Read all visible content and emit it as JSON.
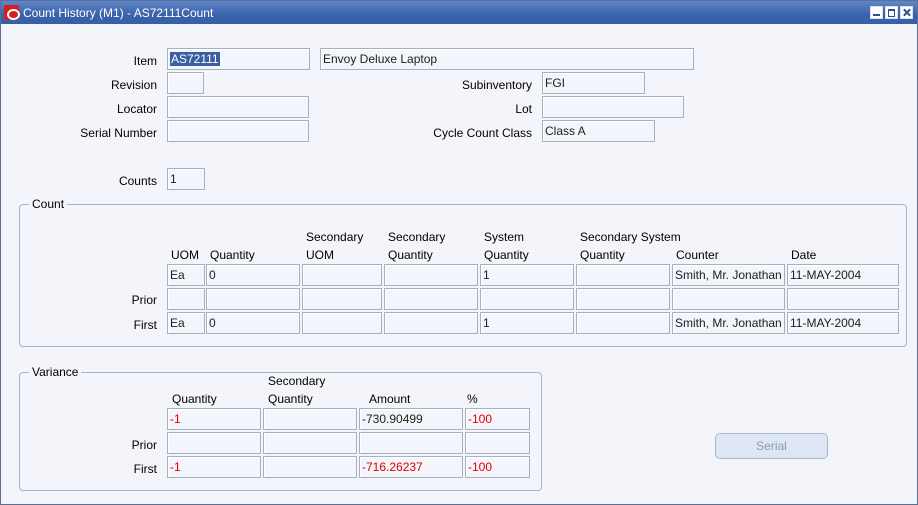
{
  "window": {
    "title": "Count History (M1) - AS72111Count"
  },
  "header": {
    "item_label": "Item",
    "item_value": "AS72111",
    "item_description": "Envoy Deluxe Laptop",
    "revision_label": "Revision",
    "revision_value": "",
    "subinventory_label": "Subinventory",
    "subinventory_value": "FGI",
    "locator_label": "Locator",
    "locator_value": "",
    "lot_label": "Lot",
    "lot_value": "",
    "serial_label": "Serial Number",
    "serial_value": "",
    "cycle_class_label": "Cycle Count Class",
    "cycle_class_value": "Class A",
    "counts_label": "Counts",
    "counts_value": "1"
  },
  "count": {
    "title": "Count",
    "columns": {
      "uom": "UOM",
      "quantity": "Quantity",
      "secondary_uom_1": "Secondary",
      "secondary_uom_2": "UOM",
      "secondary_qty_1": "Secondary",
      "secondary_qty_2": "Quantity",
      "system_qty_1": "System",
      "system_qty_2": "Quantity",
      "sec_system_qty_1": "Secondary System",
      "sec_system_qty_2": "Quantity",
      "counter": "Counter",
      "date": "Date"
    },
    "rows": [
      {
        "label": "",
        "uom": "Ea",
        "quantity": "0",
        "secondary_uom": "",
        "secondary_quantity": "",
        "system_quantity": "1",
        "secondary_system_quantity": "",
        "counter": "Smith, Mr. Jonathan",
        "date": "11-MAY-2004"
      },
      {
        "label": "Prior",
        "uom": "",
        "quantity": "",
        "secondary_uom": "",
        "secondary_quantity": "",
        "system_quantity": "",
        "secondary_system_quantity": "",
        "counter": "",
        "date": ""
      },
      {
        "label": "First",
        "uom": "Ea",
        "quantity": "0",
        "secondary_uom": "",
        "secondary_quantity": "",
        "system_quantity": "1",
        "secondary_system_quantity": "",
        "counter": "Smith, Mr. Jonathan",
        "date": "11-MAY-2004"
      }
    ]
  },
  "variance": {
    "title": "Variance",
    "columns": {
      "quantity": "Quantity",
      "secondary_quantity_1": "Secondary",
      "secondary_quantity_2": "Quantity",
      "amount": "Amount",
      "percent": "%"
    },
    "rows": [
      {
        "label": "",
        "quantity": "-1",
        "secondary_quantity": "",
        "amount": "-730.90499",
        "percent": "-100"
      },
      {
        "label": "Prior",
        "quantity": "",
        "secondary_quantity": "",
        "amount": "",
        "percent": ""
      },
      {
        "label": "First",
        "quantity": "-1",
        "secondary_quantity": "",
        "amount": "-716.26237",
        "percent": "-100"
      }
    ]
  },
  "colors": {
    "negative": "#e10000",
    "titlebar": "#3b62a8",
    "selection": "#3a5fa0"
  },
  "actions": {
    "serial_label": "Serial"
  }
}
